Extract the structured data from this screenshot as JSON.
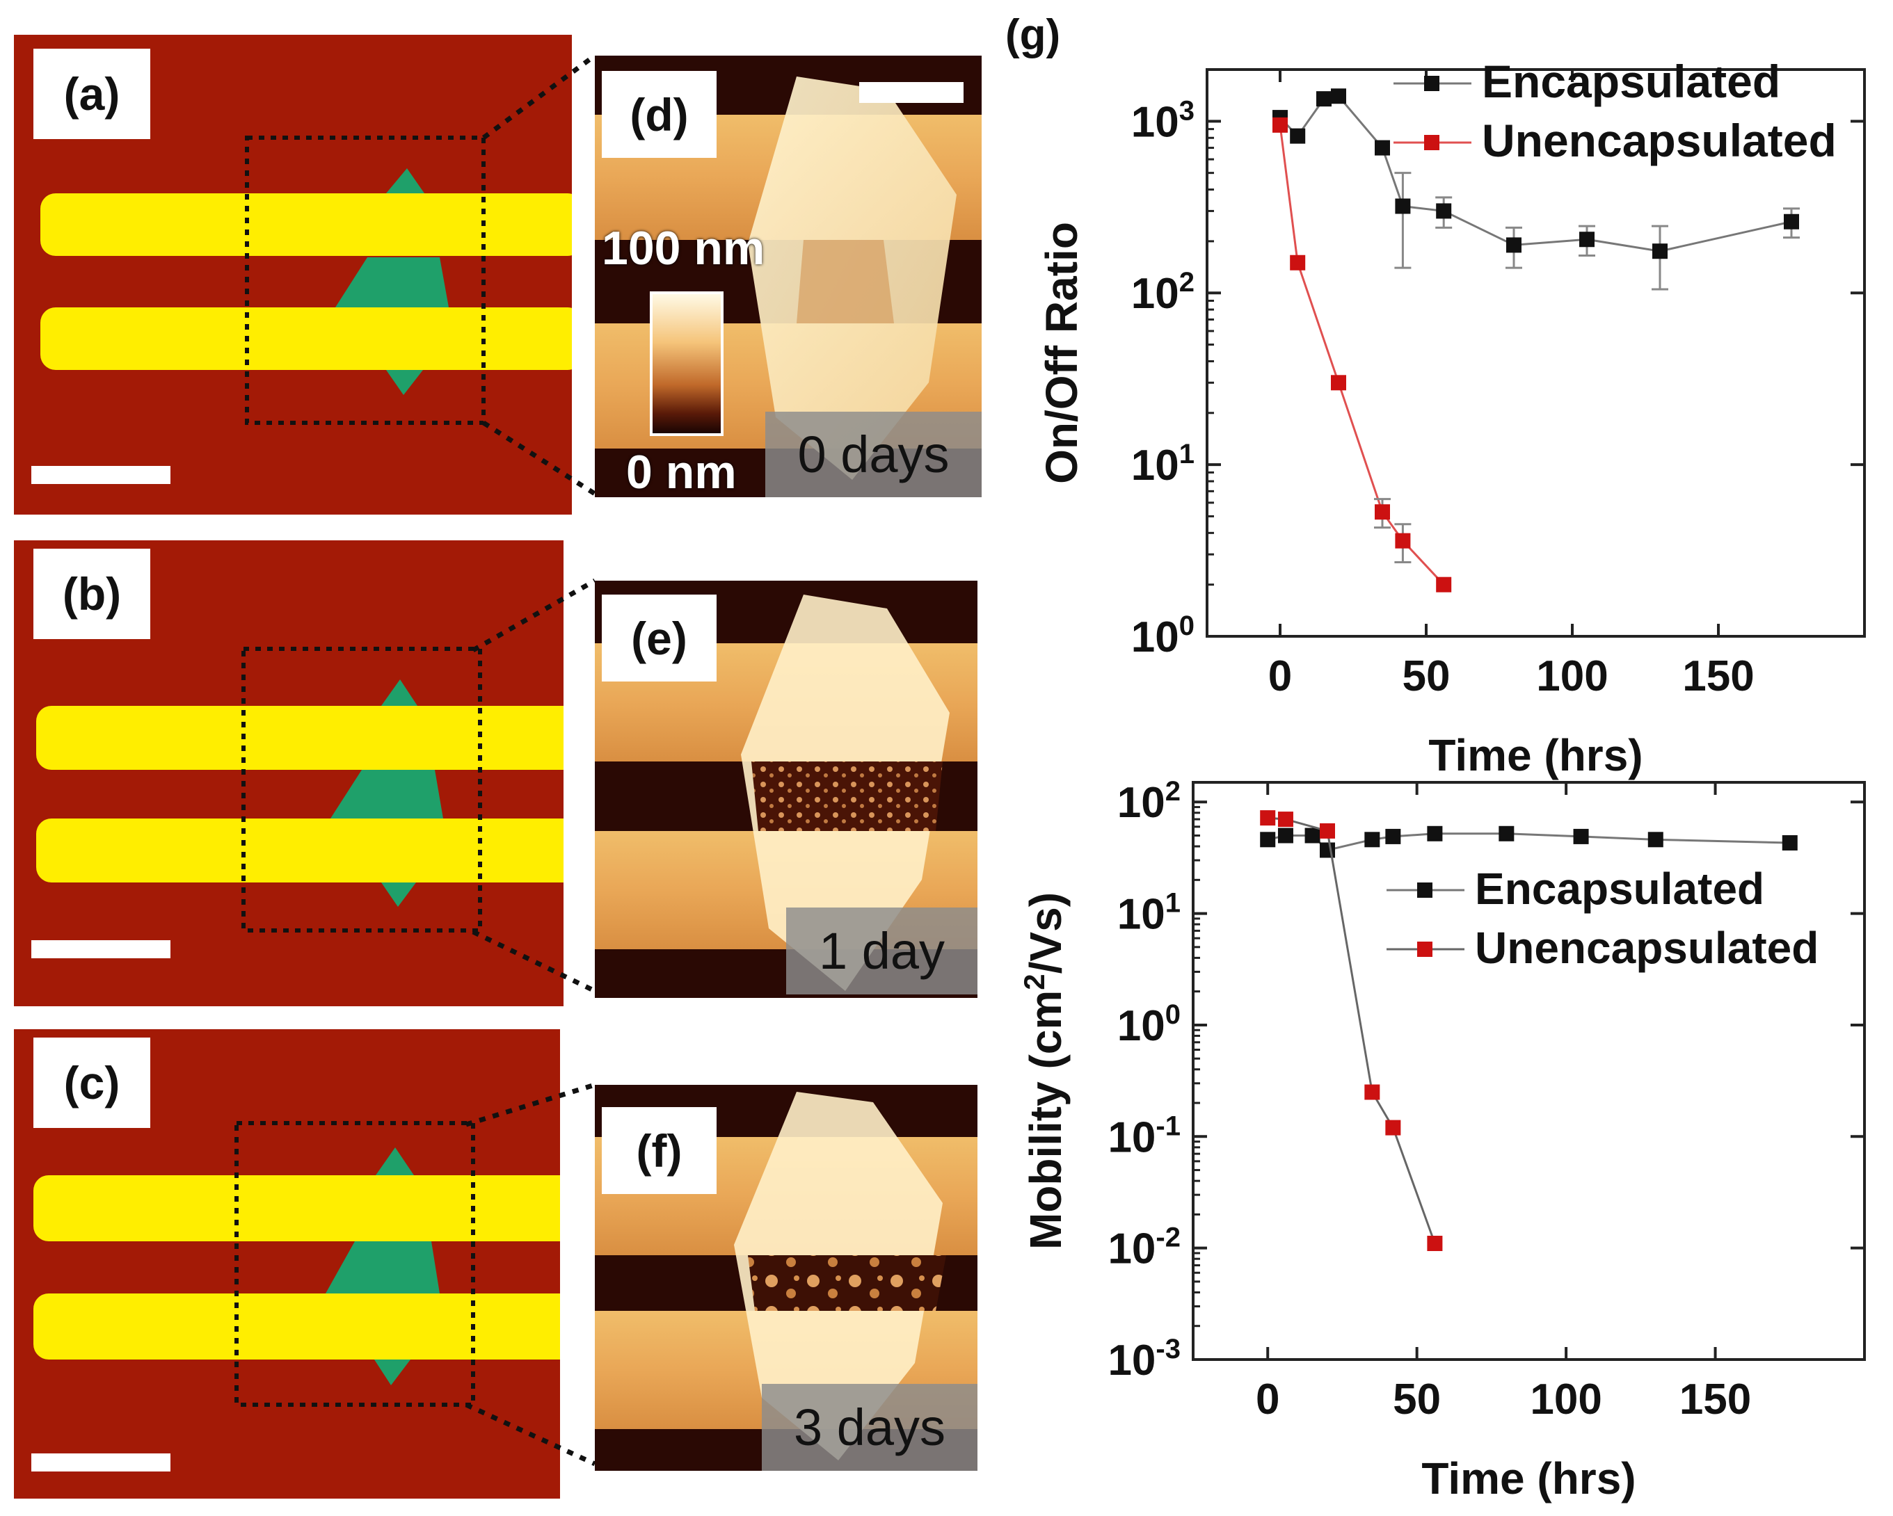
{
  "figure": {
    "optical_panels": [
      {
        "label": "(a)"
      },
      {
        "label": "(b)"
      },
      {
        "label": "(c)"
      }
    ],
    "afm_panels": [
      {
        "label": "(d)",
        "day_label": "0 days",
        "pattern": "clean"
      },
      {
        "label": "(e)",
        "day_label": "1 day",
        "pattern": "dotted"
      },
      {
        "label": "(f)",
        "day_label": "3 days",
        "pattern": "blobs"
      }
    ],
    "colorbar": {
      "top": "100 nm",
      "bottom": "0 nm"
    },
    "panel_g_label": "(g)",
    "colors": {
      "substrate": "#a31a06",
      "electrode": "#ffee00",
      "flake": "#1fa06a",
      "encapsulated": "#111111",
      "unencapsulated": "#cc1111"
    }
  },
  "chart_data": [
    {
      "type": "scatter",
      "title": "",
      "xlabel": "Time (hrs)",
      "ylabel": "On/Off Ratio",
      "yscale": "log",
      "xlim": [
        -25,
        200
      ],
      "ylim": [
        1,
        2000
      ],
      "xticks": [
        0,
        50,
        100,
        150
      ],
      "yticks": [
        {
          "value": 1,
          "base": "10",
          "exp": "0"
        },
        {
          "value": 10,
          "base": "10",
          "exp": "1"
        },
        {
          "value": 100,
          "base": "10",
          "exp": "2"
        },
        {
          "value": 1000,
          "base": "10",
          "exp": "3"
        }
      ],
      "legend": "top-right",
      "series": [
        {
          "name": "Encapsulated",
          "color": "#111111",
          "x": [
            0,
            6,
            15,
            20,
            35,
            42,
            56,
            80,
            105,
            130,
            175
          ],
          "y": [
            1050,
            820,
            1350,
            1400,
            700,
            320,
            300,
            190,
            205,
            175,
            260
          ],
          "err": [
            0,
            0,
            0,
            0,
            0,
            180,
            60,
            50,
            40,
            70,
            50
          ]
        },
        {
          "name": "Unencapsulated",
          "color": "#cc1111",
          "x": [
            0,
            6,
            20,
            35,
            42,
            56
          ],
          "y": [
            950,
            150,
            30,
            5.3,
            3.6,
            2.0
          ],
          "err": [
            0,
            0,
            0,
            1.0,
            0.9,
            0
          ]
        }
      ]
    },
    {
      "type": "scatter",
      "title": "",
      "xlabel": "Time (hrs)",
      "ylabel": "Mobility (cm²/Vs)",
      "ylabel_parts": {
        "pre": "Mobility (cm",
        "sup": "2",
        "post": "/Vs)"
      },
      "yscale": "log",
      "xlim": [
        -25,
        200
      ],
      "ylim": [
        0.001,
        150
      ],
      "xticks": [
        0,
        50,
        100,
        150
      ],
      "yticks": [
        {
          "value": 0.001,
          "base": "10",
          "exp": "-3"
        },
        {
          "value": 0.01,
          "base": "10",
          "exp": "-2"
        },
        {
          "value": 0.1,
          "base": "10",
          "exp": "-1"
        },
        {
          "value": 1,
          "base": "10",
          "exp": "0"
        },
        {
          "value": 10,
          "base": "10",
          "exp": "1"
        },
        {
          "value": 100,
          "base": "10",
          "exp": "2"
        }
      ],
      "legend": "right",
      "series": [
        {
          "name": "Encapsulated",
          "color": "#111111",
          "x": [
            0,
            6,
            15,
            20,
            35,
            42,
            56,
            80,
            105,
            130,
            175
          ],
          "y": [
            46,
            50,
            50,
            37,
            46,
            49,
            52,
            52,
            49,
            46,
            43
          ]
        },
        {
          "name": "Unencapsulated",
          "color": "#cc1111",
          "x": [
            0,
            6,
            20,
            35,
            42,
            56
          ],
          "y": [
            72,
            70,
            55,
            0.25,
            0.12,
            0.011
          ]
        }
      ]
    }
  ]
}
